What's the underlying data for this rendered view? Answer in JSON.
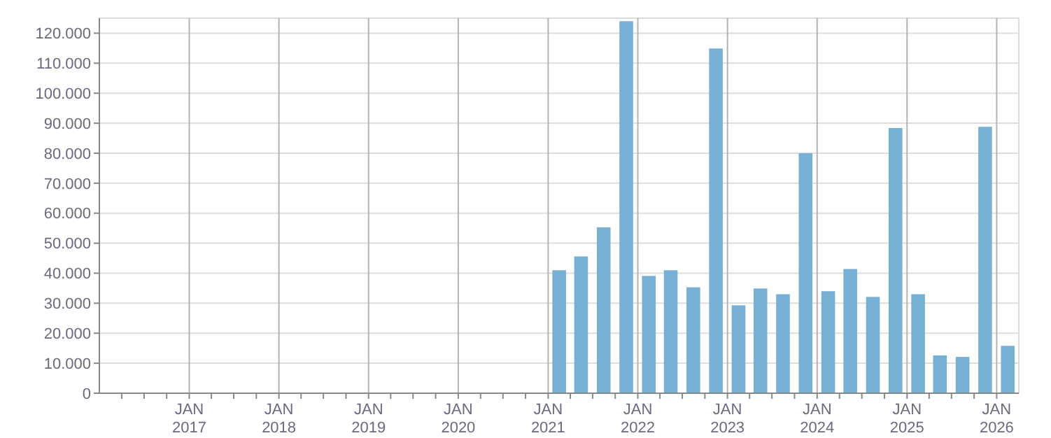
{
  "chart_data": {
    "type": "bar",
    "x": [
      "2021-02-15",
      "2021-05-15",
      "2021-08-15",
      "2021-11-15",
      "2022-02-15",
      "2022-05-15",
      "2022-08-15",
      "2022-11-15",
      "2023-02-15",
      "2023-05-15",
      "2023-08-15",
      "2023-11-15",
      "2024-02-15",
      "2024-05-15",
      "2024-08-15",
      "2024-11-15",
      "2025-02-15",
      "2025-05-15",
      "2025-08-15",
      "2025-11-15",
      "2026-02-15"
    ],
    "values": [
      41000,
      45600,
      55300,
      124000,
      39100,
      41000,
      35300,
      114900,
      29300,
      34900,
      33000,
      80000,
      34000,
      41400,
      32100,
      88400,
      33000,
      12600,
      12100,
      88800,
      15800
    ],
    "color": "#78b0d4",
    "xlim": [
      "2016-01-01",
      "2026-04-01"
    ],
    "xticks": [
      {
        "value": "2016-04-01",
        "label": null
      },
      {
        "value": "2016-07-01",
        "label": null
      },
      {
        "value": "2016-10-01",
        "label": null
      },
      {
        "value": "2017-01-01",
        "label": "JAN\n2017"
      },
      {
        "value": "2017-04-01",
        "label": null
      },
      {
        "value": "2017-07-01",
        "label": null
      },
      {
        "value": "2017-10-01",
        "label": null
      },
      {
        "value": "2018-01-01",
        "label": "JAN\n2018"
      },
      {
        "value": "2018-04-01",
        "label": null
      },
      {
        "value": "2018-07-01",
        "label": null
      },
      {
        "value": "2018-10-01",
        "label": null
      },
      {
        "value": "2019-01-01",
        "label": "JAN\n2019"
      },
      {
        "value": "2019-04-01",
        "label": null
      },
      {
        "value": "2019-07-01",
        "label": null
      },
      {
        "value": "2019-10-01",
        "label": null
      },
      {
        "value": "2020-01-01",
        "label": "JAN\n2020"
      },
      {
        "value": "2020-04-01",
        "label": null
      },
      {
        "value": "2020-07-01",
        "label": null
      },
      {
        "value": "2020-10-01",
        "label": null
      },
      {
        "value": "2021-01-01",
        "label": "JAN\n2021"
      },
      {
        "value": "2021-04-01",
        "label": null
      },
      {
        "value": "2021-07-01",
        "label": null
      },
      {
        "value": "2021-10-01",
        "label": null
      },
      {
        "value": "2022-01-01",
        "label": "JAN\n2022"
      },
      {
        "value": "2022-04-01",
        "label": null
      },
      {
        "value": "2022-07-01",
        "label": null
      },
      {
        "value": "2022-10-01",
        "label": null
      },
      {
        "value": "2023-01-01",
        "label": "JAN\n2023"
      },
      {
        "value": "2023-04-01",
        "label": null
      },
      {
        "value": "2023-07-01",
        "label": null
      },
      {
        "value": "2023-10-01",
        "label": null
      },
      {
        "value": "2024-01-01",
        "label": "JAN\n2024"
      },
      {
        "value": "2024-04-01",
        "label": null
      },
      {
        "value": "2024-07-01",
        "label": null
      },
      {
        "value": "2024-10-01",
        "label": null
      },
      {
        "value": "2025-01-01",
        "label": "JAN\n2025"
      },
      {
        "value": "2025-04-01",
        "label": null
      },
      {
        "value": "2025-07-01",
        "label": null
      },
      {
        "value": "2025-10-01",
        "label": null
      },
      {
        "value": "2026-01-01",
        "label": "JAN\n2026"
      }
    ],
    "ylim": [
      0,
      125000
    ],
    "yticks": [
      {
        "value": 0,
        "label": "0"
      },
      {
        "value": 10000,
        "label": "10.000"
      },
      {
        "value": 20000,
        "label": "20.000"
      },
      {
        "value": 30000,
        "label": "30.000"
      },
      {
        "value": 40000,
        "label": "40.000"
      },
      {
        "value": 50000,
        "label": "50.000"
      },
      {
        "value": 60000,
        "label": "60.000"
      },
      {
        "value": 70000,
        "label": "70.000"
      },
      {
        "value": 80000,
        "label": "80.000"
      },
      {
        "value": 90000,
        "label": "90.000"
      },
      {
        "value": 100000,
        "label": "100.000"
      },
      {
        "value": 110000,
        "label": "110.000"
      },
      {
        "value": 120000,
        "label": "120.000"
      }
    ],
    "grid": true
  }
}
